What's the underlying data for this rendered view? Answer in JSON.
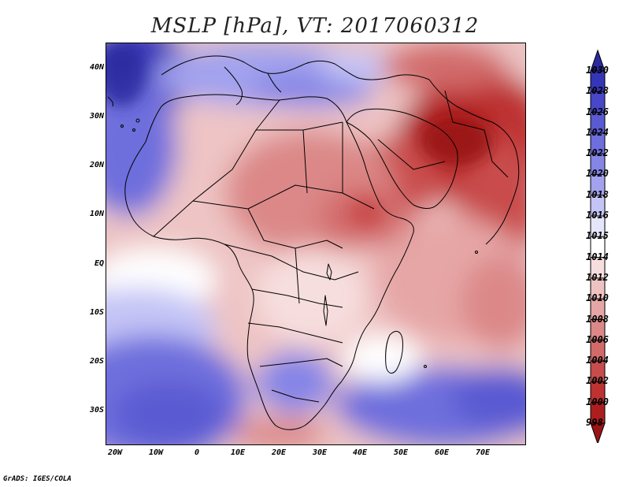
{
  "title": "MSLP [hPa], VT: 2017060312",
  "credit": "GrADS: IGES/COLA",
  "y_axis_labels": [
    "40N",
    "30N",
    "20N",
    "10N",
    "EQ",
    "10S",
    "20S",
    "30S"
  ],
  "x_axis_labels": [
    "20W",
    "10W",
    "0",
    "10E",
    "20E",
    "30E",
    "40E",
    "50E",
    "60E",
    "70E"
  ],
  "colorbar": {
    "labels": [
      "1030",
      "1028",
      "1026",
      "1024",
      "1022",
      "1020",
      "1018",
      "1016",
      "1015",
      "1014",
      "1012",
      "1010",
      "1008",
      "1006",
      "1004",
      "1002",
      "1000",
      "998"
    ],
    "colors": [
      "#2b2a9e",
      "#3535b8",
      "#4747c8",
      "#5a5ad2",
      "#6e6edd",
      "#8585e6",
      "#a2a2ee",
      "#c4c4f6",
      "#e6e6fb",
      "#ffffff",
      "#f7dede",
      "#efc2c2",
      "#e6a6a6",
      "#dc8888",
      "#d26a6a",
      "#c94c4c",
      "#be3232",
      "#ad1f1f",
      "#991414"
    ]
  },
  "map_data": {
    "variable": "MSLP",
    "units": "hPa",
    "valid_time": "2017060312",
    "lon_range": [
      -22,
      80
    ],
    "lat_range": [
      -37,
      45
    ]
  }
}
